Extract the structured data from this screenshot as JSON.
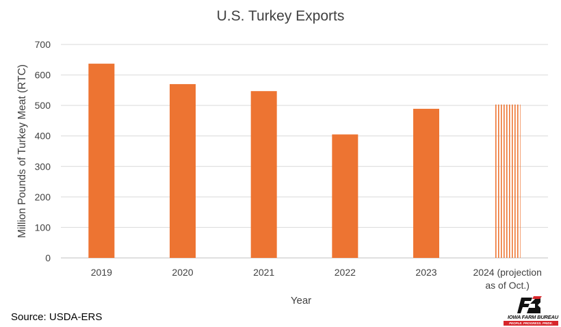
{
  "chart_data": {
    "type": "bar",
    "title": "U.S. Turkey Exports",
    "xlabel": "Year",
    "ylabel": "Million Pounds of Turkey Meat (RTC)",
    "categories": [
      "2019",
      "2020",
      "2021",
      "2022",
      "2023",
      "2024 (projection as of Oct.)"
    ],
    "category_lines": [
      [
        "2019"
      ],
      [
        "2020"
      ],
      [
        "2021"
      ],
      [
        "2022"
      ],
      [
        "2023"
      ],
      [
        "2024 (projection",
        "as of Oct.)"
      ]
    ],
    "values": [
      637,
      570,
      547,
      405,
      489,
      503
    ],
    "styles": [
      "solid",
      "solid",
      "solid",
      "solid",
      "solid",
      "striped"
    ],
    "ylim": [
      0,
      700
    ],
    "yticks": [
      0,
      100,
      200,
      300,
      400,
      500,
      600,
      700
    ],
    "grid": true,
    "legend": "none",
    "bar_color": "#ed7432"
  },
  "source": "Source: USDA-ERS",
  "logo": {
    "name": "IOWA FARM BUREAU",
    "tagline": "PEOPLE. PROGRESS. PRIDE.",
    "colors": {
      "black": "#111111",
      "red": "#d7262b"
    }
  }
}
